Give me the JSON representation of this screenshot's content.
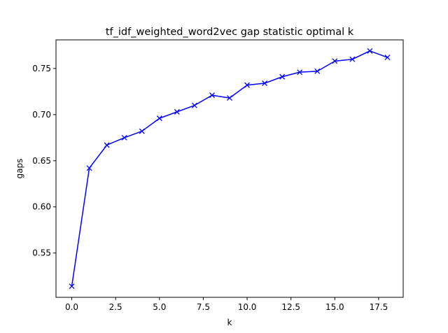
{
  "chart_data": {
    "type": "line",
    "title": "tf_idf_weighted_word2vec gap statistic optimal k",
    "xlabel": "k",
    "ylabel": "gaps",
    "xlim": [
      -0.9,
      18.9
    ],
    "ylim": [
      0.502,
      0.781
    ],
    "x_ticks": [
      0,
      2.5,
      5,
      7.5,
      10,
      12.5,
      15,
      17.5
    ],
    "x_tick_labels": [
      "0.0",
      "2.5",
      "5.0",
      "7.5",
      "10.0",
      "12.5",
      "15.0",
      "17.5"
    ],
    "y_ticks": [
      0.55,
      0.6,
      0.65,
      0.7,
      0.75
    ],
    "y_tick_labels": [
      "0.55",
      "0.60",
      "0.65",
      "0.70",
      "0.75"
    ],
    "grid": false,
    "marker": "x",
    "color": "#0000ff",
    "x": [
      0,
      1,
      2,
      3,
      4,
      5,
      6,
      7,
      8,
      9,
      10,
      11,
      12,
      13,
      14,
      15,
      16,
      17,
      18
    ],
    "values": [
      0.514,
      0.642,
      0.667,
      0.675,
      0.682,
      0.696,
      0.703,
      0.71,
      0.721,
      0.718,
      0.732,
      0.734,
      0.741,
      0.746,
      0.747,
      0.758,
      0.76,
      0.769,
      0.762
    ]
  }
}
